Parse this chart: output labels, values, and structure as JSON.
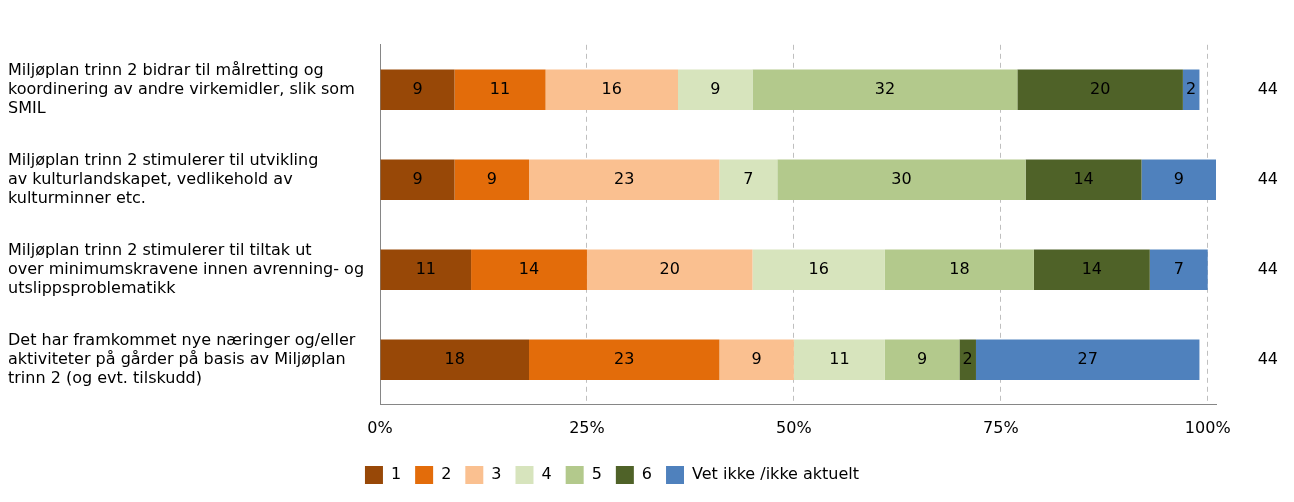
{
  "chart_data": {
    "type": "bar",
    "orientation": "horizontal",
    "stacked": true,
    "categories": [
      "Miljøplan trinn 2 bidrar til målretting og koordinering av andre virkemidler, slik som SMIL",
      "Miljøplan trinn 2 stimulerer til utvikling av kulturlandskapet, vedlikehold av kulturminner etc.",
      "Miljøplan trinn 2 stimulerer til tiltak ut over minimumskravene innen avrenning- og utslippsproblematikk",
      "Det har framkommet nye næringer og/eller aktiviteter på gårder på basis av Miljøplan trinn 2 (og evt. tilskudd)"
    ],
    "series": [
      {
        "name": "1",
        "color": "#984807",
        "values": [
          9,
          9,
          11,
          18
        ]
      },
      {
        "name": "2",
        "color": "#e36c0a",
        "values": [
          11,
          9,
          14,
          23
        ]
      },
      {
        "name": "3",
        "color": "#fac090",
        "values": [
          16,
          23,
          20,
          9
        ]
      },
      {
        "name": "4",
        "color": "#d7e4bd",
        "values": [
          9,
          7,
          16,
          11
        ]
      },
      {
        "name": "5",
        "color": "#b3c98c",
        "values": [
          32,
          30,
          18,
          9
        ]
      },
      {
        "name": "6",
        "color": "#4f6228",
        "values": [
          20,
          14,
          14,
          2
        ]
      },
      {
        "name": "Vet ikke /ikke aktuelt",
        "color": "#4f81bd",
        "values": [
          2,
          9,
          7,
          27
        ]
      }
    ],
    "xlim": [
      0,
      101
    ],
    "xticks": [
      {
        "value": 0,
        "label": "0%"
      },
      {
        "value": 25,
        "label": "25%"
      },
      {
        "value": 50,
        "label": "50%"
      },
      {
        "value": 75,
        "label": "75%"
      },
      {
        "value": 100,
        "label": "100%"
      }
    ],
    "grid": "x",
    "legend": "bottom",
    "data_labels": true,
    "annotations": [
      "44",
      "44",
      "44",
      "44"
    ]
  }
}
